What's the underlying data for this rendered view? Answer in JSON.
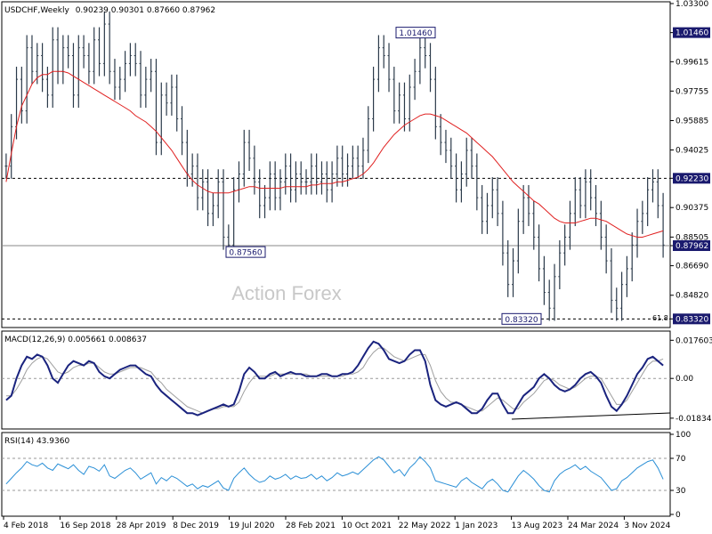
{
  "header": {
    "title": "USDCHF,Weekly",
    "ohlc": "0.90239 0.90301 0.87660 0.87962",
    "macd_label": "MACD(12,26,9) 0.005661 0.008637",
    "rsi_label": "RSI(14) 43.9360",
    "watermark": "Action Forex",
    "fib_label": "61.8"
  },
  "colors": {
    "price": "#2b3a4a",
    "sma": "#e02020",
    "macd": "#1a237e",
    "signal": "#9e9e9e",
    "rsi": "#2a8fd6",
    "highlight_bg": "#1a1a6e",
    "grid": "#c0c0c0"
  },
  "chart_data": [
    {
      "type": "line",
      "name": "price",
      "ylim": [
        0.83,
        1.033
      ],
      "y_ticks": [
        "1.03300",
        "1.01460",
        "0.99615",
        "0.97755",
        "0.95885",
        "0.94025",
        "0.92230",
        "0.90375",
        "0.88505",
        "0.87962",
        "0.86690",
        "0.84820",
        "0.83320"
      ],
      "highlighted_ticks": [
        "1.01460",
        "0.92230",
        "0.87962",
        "0.83320"
      ],
      "x_labels": [
        "4 Feb 2018",
        "16 Sep 2018",
        "28 Apr 2019",
        "8 Dec 2019",
        "19 Jul 2020",
        "28 Feb 2021",
        "10 Oct 2021",
        "22 May 2022",
        "1 Jan 2023",
        "13 Aug 2023",
        "24 Mar 2024",
        "3 Nov 2024"
      ],
      "annotations": [
        {
          "text": "1.01460",
          "value": 1.0146
        },
        {
          "text": "0.87560",
          "value": 0.8756
        },
        {
          "text": "0.83320",
          "value": 0.8332
        }
      ],
      "levels": [
        0.9223,
        0.8796,
        0.8332
      ],
      "close": [
        0.93,
        0.955,
        0.985,
        0.965,
        1.005,
        0.99,
        1.0,
        0.985,
        0.975,
        1.01,
        0.99,
        1.005,
        1.0,
        0.975,
        1.005,
        1.0,
        0.99,
        1.01,
        0.995,
        1.02,
        0.99,
        0.98,
        0.985,
        0.995,
        1.0,
        0.995,
        0.975,
        0.985,
        0.99,
        0.945,
        0.975,
        0.97,
        0.98,
        0.96,
        0.945,
        0.925,
        0.93,
        0.91,
        0.92,
        0.9,
        0.905,
        0.92,
        0.885,
        0.88,
        0.915,
        0.925,
        0.945,
        0.935,
        0.92,
        0.905,
        0.91,
        0.925,
        0.91,
        0.92,
        0.93,
        0.915,
        0.925,
        0.92,
        0.92,
        0.93,
        0.92,
        0.925,
        0.915,
        0.925,
        0.935,
        0.925,
        0.93,
        0.935,
        0.93,
        0.94,
        0.96,
        0.985,
        1.005,
        1.0,
        0.985,
        0.965,
        0.975,
        0.96,
        0.98,
        0.99,
        1.005,
        1.0,
        0.985,
        0.955,
        0.945,
        0.94,
        0.93,
        0.915,
        0.925,
        0.94,
        0.93,
        0.91,
        0.895,
        0.905,
        0.915,
        0.9,
        0.875,
        0.855,
        0.87,
        0.895,
        0.91,
        0.9,
        0.885,
        0.865,
        0.85,
        0.84,
        0.86,
        0.875,
        0.885,
        0.9,
        0.915,
        0.905,
        0.92,
        0.91,
        0.9,
        0.885,
        0.87,
        0.845,
        0.84,
        0.855,
        0.865,
        0.88,
        0.895,
        0.9,
        0.915,
        0.92,
        0.905,
        0.88
      ]
    },
    {
      "type": "line",
      "name": "sma",
      "values": [
        0.92,
        0.938,
        0.955,
        0.968,
        0.975,
        0.982,
        0.986,
        0.988,
        0.988,
        0.99,
        0.99,
        0.99,
        0.989,
        0.987,
        0.985,
        0.983,
        0.981,
        0.979,
        0.977,
        0.975,
        0.973,
        0.971,
        0.969,
        0.967,
        0.965,
        0.962,
        0.96,
        0.958,
        0.955,
        0.952,
        0.948,
        0.944,
        0.94,
        0.935,
        0.93,
        0.925,
        0.921,
        0.918,
        0.916,
        0.914,
        0.913,
        0.913,
        0.913,
        0.913,
        0.914,
        0.915,
        0.916,
        0.917,
        0.917,
        0.916,
        0.916,
        0.916,
        0.916,
        0.916,
        0.917,
        0.917,
        0.917,
        0.917,
        0.917,
        0.918,
        0.918,
        0.919,
        0.919,
        0.919,
        0.92,
        0.92,
        0.921,
        0.922,
        0.923,
        0.925,
        0.928,
        0.932,
        0.937,
        0.942,
        0.946,
        0.95,
        0.953,
        0.956,
        0.958,
        0.96,
        0.962,
        0.963,
        0.963,
        0.962,
        0.961,
        0.959,
        0.957,
        0.955,
        0.953,
        0.951,
        0.948,
        0.945,
        0.942,
        0.939,
        0.936,
        0.932,
        0.928,
        0.924,
        0.92,
        0.917,
        0.914,
        0.911,
        0.908,
        0.906,
        0.903,
        0.9,
        0.897,
        0.895,
        0.894,
        0.894,
        0.894,
        0.895,
        0.896,
        0.897,
        0.897,
        0.896,
        0.895,
        0.893,
        0.891,
        0.889,
        0.887,
        0.886,
        0.885,
        0.885,
        0.886,
        0.887,
        0.888,
        0.889
      ]
    },
    {
      "type": "line",
      "name": "MACD(12,26,9)",
      "ylim": [
        -0.0225,
        0.0202
      ],
      "y_ticks": [
        "0.017603",
        "0.00",
        "-0.01834"
      ],
      "macd": [
        -0.01,
        -0.008,
        0.0,
        0.006,
        0.01,
        0.009,
        0.011,
        0.01,
        0.006,
        0.0,
        -0.002,
        0.002,
        0.006,
        0.008,
        0.007,
        0.006,
        0.008,
        0.007,
        0.003,
        0.001,
        0.0,
        0.002,
        0.004,
        0.005,
        0.006,
        0.006,
        0.004,
        0.002,
        0.001,
        -0.003,
        -0.006,
        -0.008,
        -0.01,
        -0.012,
        -0.014,
        -0.016,
        -0.016,
        -0.017,
        -0.016,
        -0.015,
        -0.014,
        -0.013,
        -0.012,
        -0.013,
        -0.012,
        -0.006,
        0.002,
        0.005,
        0.003,
        0.0,
        0.0,
        0.002,
        0.003,
        0.001,
        0.002,
        0.003,
        0.002,
        0.002,
        0.001,
        0.001,
        0.001,
        0.002,
        0.002,
        0.001,
        0.001,
        0.002,
        0.002,
        0.003,
        0.006,
        0.01,
        0.014,
        0.017,
        0.016,
        0.013,
        0.009,
        0.008,
        0.007,
        0.008,
        0.011,
        0.013,
        0.013,
        0.008,
        -0.003,
        -0.01,
        -0.012,
        -0.013,
        -0.012,
        -0.011,
        -0.012,
        -0.014,
        -0.016,
        -0.016,
        -0.014,
        -0.01,
        -0.007,
        -0.007,
        -0.012,
        -0.016,
        -0.016,
        -0.012,
        -0.008,
        -0.006,
        -0.004,
        0.0,
        0.002,
        0.0,
        -0.003,
        -0.005,
        -0.006,
        -0.005,
        -0.003,
        0.0,
        0.002,
        0.003,
        0.001,
        -0.002,
        -0.008,
        -0.013,
        -0.015,
        -0.012,
        -0.008,
        -0.003,
        0.002,
        0.005,
        0.009,
        0.01,
        0.008,
        0.006
      ],
      "signal": [
        -0.008,
        -0.008,
        -0.005,
        -0.001,
        0.004,
        0.007,
        0.009,
        0.01,
        0.009,
        0.006,
        0.003,
        0.002,
        0.003,
        0.005,
        0.006,
        0.006,
        0.007,
        0.007,
        0.005,
        0.003,
        0.002,
        0.002,
        0.003,
        0.004,
        0.005,
        0.005,
        0.005,
        0.004,
        0.003,
        0.0,
        -0.002,
        -0.005,
        -0.007,
        -0.009,
        -0.011,
        -0.013,
        -0.014,
        -0.015,
        -0.016,
        -0.015,
        -0.014,
        -0.014,
        -0.013,
        -0.013,
        -0.013,
        -0.011,
        -0.006,
        -0.002,
        0.001,
        0.001,
        0.001,
        0.001,
        0.002,
        0.002,
        0.002,
        0.002,
        0.002,
        0.002,
        0.002,
        0.001,
        0.001,
        0.001,
        0.001,
        0.001,
        0.001,
        0.001,
        0.002,
        0.002,
        0.003,
        0.005,
        0.009,
        0.012,
        0.014,
        0.014,
        0.012,
        0.01,
        0.009,
        0.008,
        0.009,
        0.01,
        0.011,
        0.011,
        0.006,
        -0.001,
        -0.006,
        -0.009,
        -0.011,
        -0.011,
        -0.012,
        -0.013,
        -0.014,
        -0.015,
        -0.015,
        -0.013,
        -0.011,
        -0.009,
        -0.01,
        -0.012,
        -0.014,
        -0.014,
        -0.011,
        -0.009,
        -0.007,
        -0.004,
        -0.001,
        0.0,
        -0.001,
        -0.003,
        -0.004,
        -0.005,
        -0.004,
        -0.002,
        0.0,
        0.001,
        0.001,
        0.0,
        -0.004,
        -0.008,
        -0.012,
        -0.012,
        -0.01,
        -0.006,
        -0.002,
        0.002,
        0.006,
        0.008,
        0.008,
        0.009
      ]
    },
    {
      "type": "line",
      "name": "RSI(14)",
      "ylim": [
        0,
        100
      ],
      "y_ticks": [
        "100",
        "70",
        "30",
        "0"
      ],
      "values": [
        38,
        45,
        52,
        58,
        66,
        62,
        60,
        64,
        58,
        55,
        63,
        60,
        57,
        62,
        55,
        50,
        60,
        58,
        54,
        62,
        48,
        45,
        50,
        55,
        58,
        52,
        44,
        48,
        52,
        38,
        46,
        42,
        48,
        45,
        40,
        35,
        38,
        32,
        36,
        34,
        38,
        42,
        33,
        30,
        45,
        52,
        58,
        50,
        44,
        40,
        42,
        48,
        44,
        46,
        50,
        44,
        48,
        45,
        46,
        50,
        44,
        48,
        42,
        46,
        52,
        48,
        50,
        53,
        50,
        56,
        62,
        68,
        72,
        68,
        60,
        52,
        56,
        48,
        58,
        64,
        72,
        66,
        58,
        42,
        40,
        38,
        36,
        34,
        42,
        46,
        40,
        36,
        32,
        40,
        44,
        38,
        30,
        28,
        38,
        48,
        55,
        50,
        44,
        36,
        30,
        28,
        42,
        50,
        55,
        58,
        62,
        56,
        60,
        54,
        50,
        46,
        38,
        30,
        32,
        42,
        46,
        52,
        58,
        62,
        66,
        68,
        58,
        44
      ]
    }
  ]
}
